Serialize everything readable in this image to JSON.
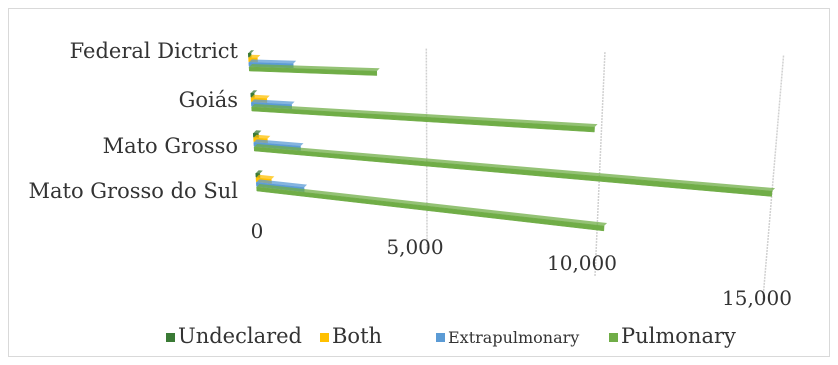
{
  "chart_data": {
    "type": "bar",
    "orientation": "horizontal-3d",
    "categories": [
      "Federal Dictrict",
      "Goiás",
      "Mato Grosso",
      "Mato Grosso do Sul"
    ],
    "series": [
      {
        "name": "Undeclared",
        "values": [
          80,
          100,
          150,
          120
        ],
        "color": "#3a7a35"
      },
      {
        "name": "Both",
        "values": [
          250,
          450,
          400,
          450
        ],
        "color": "#ffc000"
      },
      {
        "name": "Extrapulmonary",
        "values": [
          1250,
          1150,
          1350,
          1400
        ],
        "color": "#5b9bd5"
      },
      {
        "name": "Pulmonary",
        "values": [
          3600,
          9800,
          15000,
          10200
        ],
        "color": "#70ad47"
      }
    ],
    "xticks": [
      "0",
      "5,000",
      "10,000",
      "15,000"
    ],
    "xlim": [
      0,
      15000
    ],
    "grid": true,
    "legend": "bottom"
  }
}
